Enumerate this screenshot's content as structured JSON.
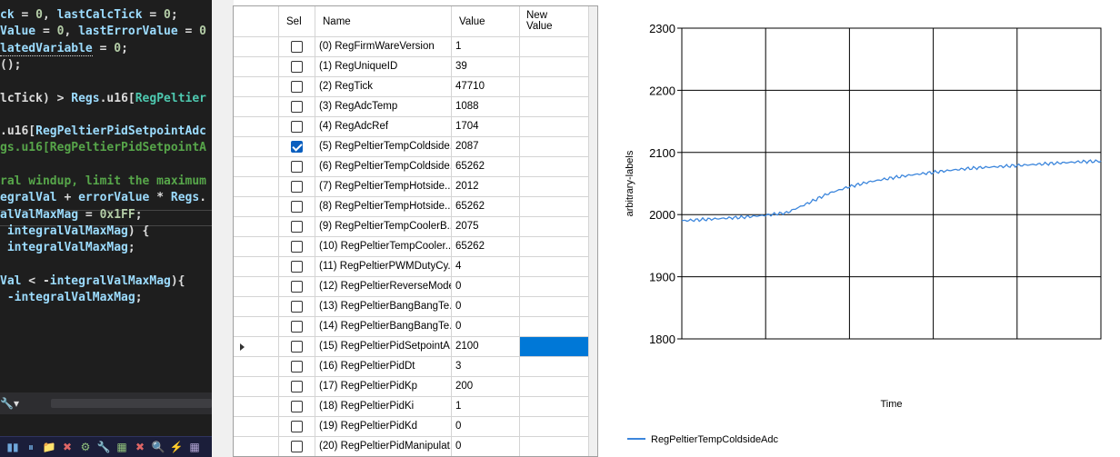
{
  "editor": {
    "lines": [
      [
        {
          "t": "ck",
          "c": "id"
        },
        {
          "t": " = ",
          "c": "op"
        },
        {
          "t": "0",
          "c": "num"
        },
        {
          "t": ", ",
          "c": "op"
        },
        {
          "t": "lastCalcTick",
          "c": "id"
        },
        {
          "t": " = ",
          "c": "op"
        },
        {
          "t": "0",
          "c": "num"
        },
        {
          "t": ";",
          "c": "op"
        }
      ],
      [
        {
          "t": "Value",
          "c": "id"
        },
        {
          "t": " = ",
          "c": "op"
        },
        {
          "t": "0",
          "c": "num"
        },
        {
          "t": ", ",
          "c": "op"
        },
        {
          "t": "lastErrorValue",
          "c": "id"
        },
        {
          "t": " = ",
          "c": "op"
        },
        {
          "t": "0",
          "c": "num"
        }
      ],
      [
        {
          "t": "latedVariable",
          "c": "id dotted"
        },
        {
          "t": " = ",
          "c": "op"
        },
        {
          "t": "0",
          "c": "num"
        },
        {
          "t": ";",
          "c": "op"
        }
      ],
      [
        {
          "t": "();",
          "c": "op"
        }
      ],
      [],
      [
        {
          "t": "lcTick) > ",
          "c": "op"
        },
        {
          "t": "Regs",
          "c": "id"
        },
        {
          "t": ".u16[",
          "c": "op"
        },
        {
          "t": "RegPeltier",
          "c": "ty"
        }
      ],
      [],
      [
        {
          "t": ".u16[",
          "c": "op"
        },
        {
          "t": "RegPeltierPidSetpointAdc",
          "c": "id"
        }
      ],
      [
        {
          "t": "gs.u16[RegPeltierPidSetpointA",
          "c": "cm"
        }
      ],
      [],
      [
        {
          "t": "ral windup, limit the maximum",
          "c": "cm"
        }
      ],
      [
        {
          "t": "egralVal",
          "c": "id"
        },
        {
          "t": " + ",
          "c": "op"
        },
        {
          "t": "errorValue",
          "c": "id"
        },
        {
          "t": " * ",
          "c": "op"
        },
        {
          "t": "Regs",
          "c": "id"
        },
        {
          "t": ".",
          "c": "op"
        }
      ],
      [
        {
          "t": "alValMaxMag",
          "c": "id"
        },
        {
          "t": " = ",
          "c": "op"
        },
        {
          "t": "0x1FF",
          "c": "num"
        },
        {
          "t": ";",
          "c": "op"
        }
      ],
      [
        {
          "t": " integralValMaxMag",
          "c": "id"
        },
        {
          "t": ") {",
          "c": "op"
        }
      ],
      [
        {
          "t": " integralValMaxMag",
          "c": "id"
        },
        {
          "t": ";",
          "c": "op"
        }
      ],
      [],
      [
        {
          "t": "Val",
          "c": "id"
        },
        {
          "t": " < -",
          "c": "op"
        },
        {
          "t": "integralValMaxMag",
          "c": "id"
        },
        {
          "t": "){",
          "c": "op"
        }
      ],
      [
        {
          "t": " -integralValMaxMag",
          "c": "id"
        },
        {
          "t": ";",
          "c": "op"
        }
      ]
    ],
    "nav_dropdown_label": "🔧▾",
    "taskbar_icons": [
      "▮▮",
      "⏸",
      "📁",
      "✖",
      "⚙",
      "🔧",
      "▦",
      "✖",
      "🔍",
      "⚡",
      "▦"
    ]
  },
  "grid": {
    "headers": {
      "sel": "Sel",
      "name": "Name",
      "value": "Value",
      "new_value": "New Value"
    },
    "rows": [
      {
        "name": "(0) RegFirmWareVersion",
        "value": "1",
        "sel": false,
        "new_value": ""
      },
      {
        "name": "(1) RegUniqueID",
        "value": "39",
        "sel": false,
        "new_value": ""
      },
      {
        "name": "(2) RegTick",
        "value": "47710",
        "sel": false,
        "new_value": ""
      },
      {
        "name": "(3) RegAdcTemp",
        "value": "1088",
        "sel": false,
        "new_value": ""
      },
      {
        "name": "(4) RegAdcRef",
        "value": "1704",
        "sel": false,
        "new_value": ""
      },
      {
        "name": "(5) RegPeltierTempColdside...",
        "value": "2087",
        "sel": true,
        "new_value": ""
      },
      {
        "name": "(6) RegPeltierTempColdside...",
        "value": "65262",
        "sel": false,
        "new_value": ""
      },
      {
        "name": "(7) RegPeltierTempHotside...",
        "value": "2012",
        "sel": false,
        "new_value": ""
      },
      {
        "name": "(8) RegPeltierTempHotside...",
        "value": "65262",
        "sel": false,
        "new_value": ""
      },
      {
        "name": "(9) RegPeltierTempCoolerB...",
        "value": "2075",
        "sel": false,
        "new_value": ""
      },
      {
        "name": "(10) RegPeltierTempCooler...",
        "value": "65262",
        "sel": false,
        "new_value": ""
      },
      {
        "name": "(11) RegPeltierPWMDutyCy...",
        "value": "4",
        "sel": false,
        "new_value": ""
      },
      {
        "name": "(12) RegPeltierReverseMode",
        "value": "0",
        "sel": false,
        "new_value": ""
      },
      {
        "name": "(13) RegPeltierBangBangTe...",
        "value": "0",
        "sel": false,
        "new_value": ""
      },
      {
        "name": "(14) RegPeltierBangBangTe...",
        "value": "0",
        "sel": false,
        "new_value": ""
      },
      {
        "name": "(15) RegPeltierPidSetpointA...",
        "value": "2100",
        "sel": false,
        "new_value": "",
        "current": true
      },
      {
        "name": "(16) RegPeltierPidDt",
        "value": "3",
        "sel": false,
        "new_value": ""
      },
      {
        "name": "(17) RegPeltierPidKp",
        "value": "200",
        "sel": false,
        "new_value": ""
      },
      {
        "name": "(18) RegPeltierPidKi",
        "value": "1",
        "sel": false,
        "new_value": ""
      },
      {
        "name": "(19) RegPeltierPidKd",
        "value": "0",
        "sel": false,
        "new_value": ""
      },
      {
        "name": "(20) RegPeltierPidManipulat...",
        "value": "0",
        "sel": false,
        "new_value": ""
      }
    ]
  },
  "colors": {
    "series_line": "#3c86dc",
    "selected_cell": "#0078d7",
    "editor_bg": "#1e1e1e"
  },
  "chart_data": {
    "type": "line",
    "title": "",
    "xlabel": "Time",
    "ylabel": "arbitrary-labels",
    "ylim": [
      1800,
      2300
    ],
    "yticks": [
      1800,
      1900,
      2000,
      2100,
      2200,
      2300
    ],
    "grid": true,
    "legend": "bottom-left",
    "x_range": [
      0,
      100
    ],
    "series": [
      {
        "name": "RegPeltierTempColdsideAdc",
        "x": [
          0,
          5,
          10,
          15,
          20,
          25,
          30,
          35,
          40,
          45,
          50,
          55,
          60,
          65,
          70,
          75,
          80,
          85,
          90,
          95,
          100
        ],
        "values": [
          1990,
          1992,
          1994,
          1996,
          1999,
          2003,
          2018,
          2034,
          2045,
          2053,
          2059,
          2064,
          2068,
          2072,
          2075,
          2077,
          2079,
          2081,
          2083,
          2085,
          2086
        ]
      }
    ]
  }
}
